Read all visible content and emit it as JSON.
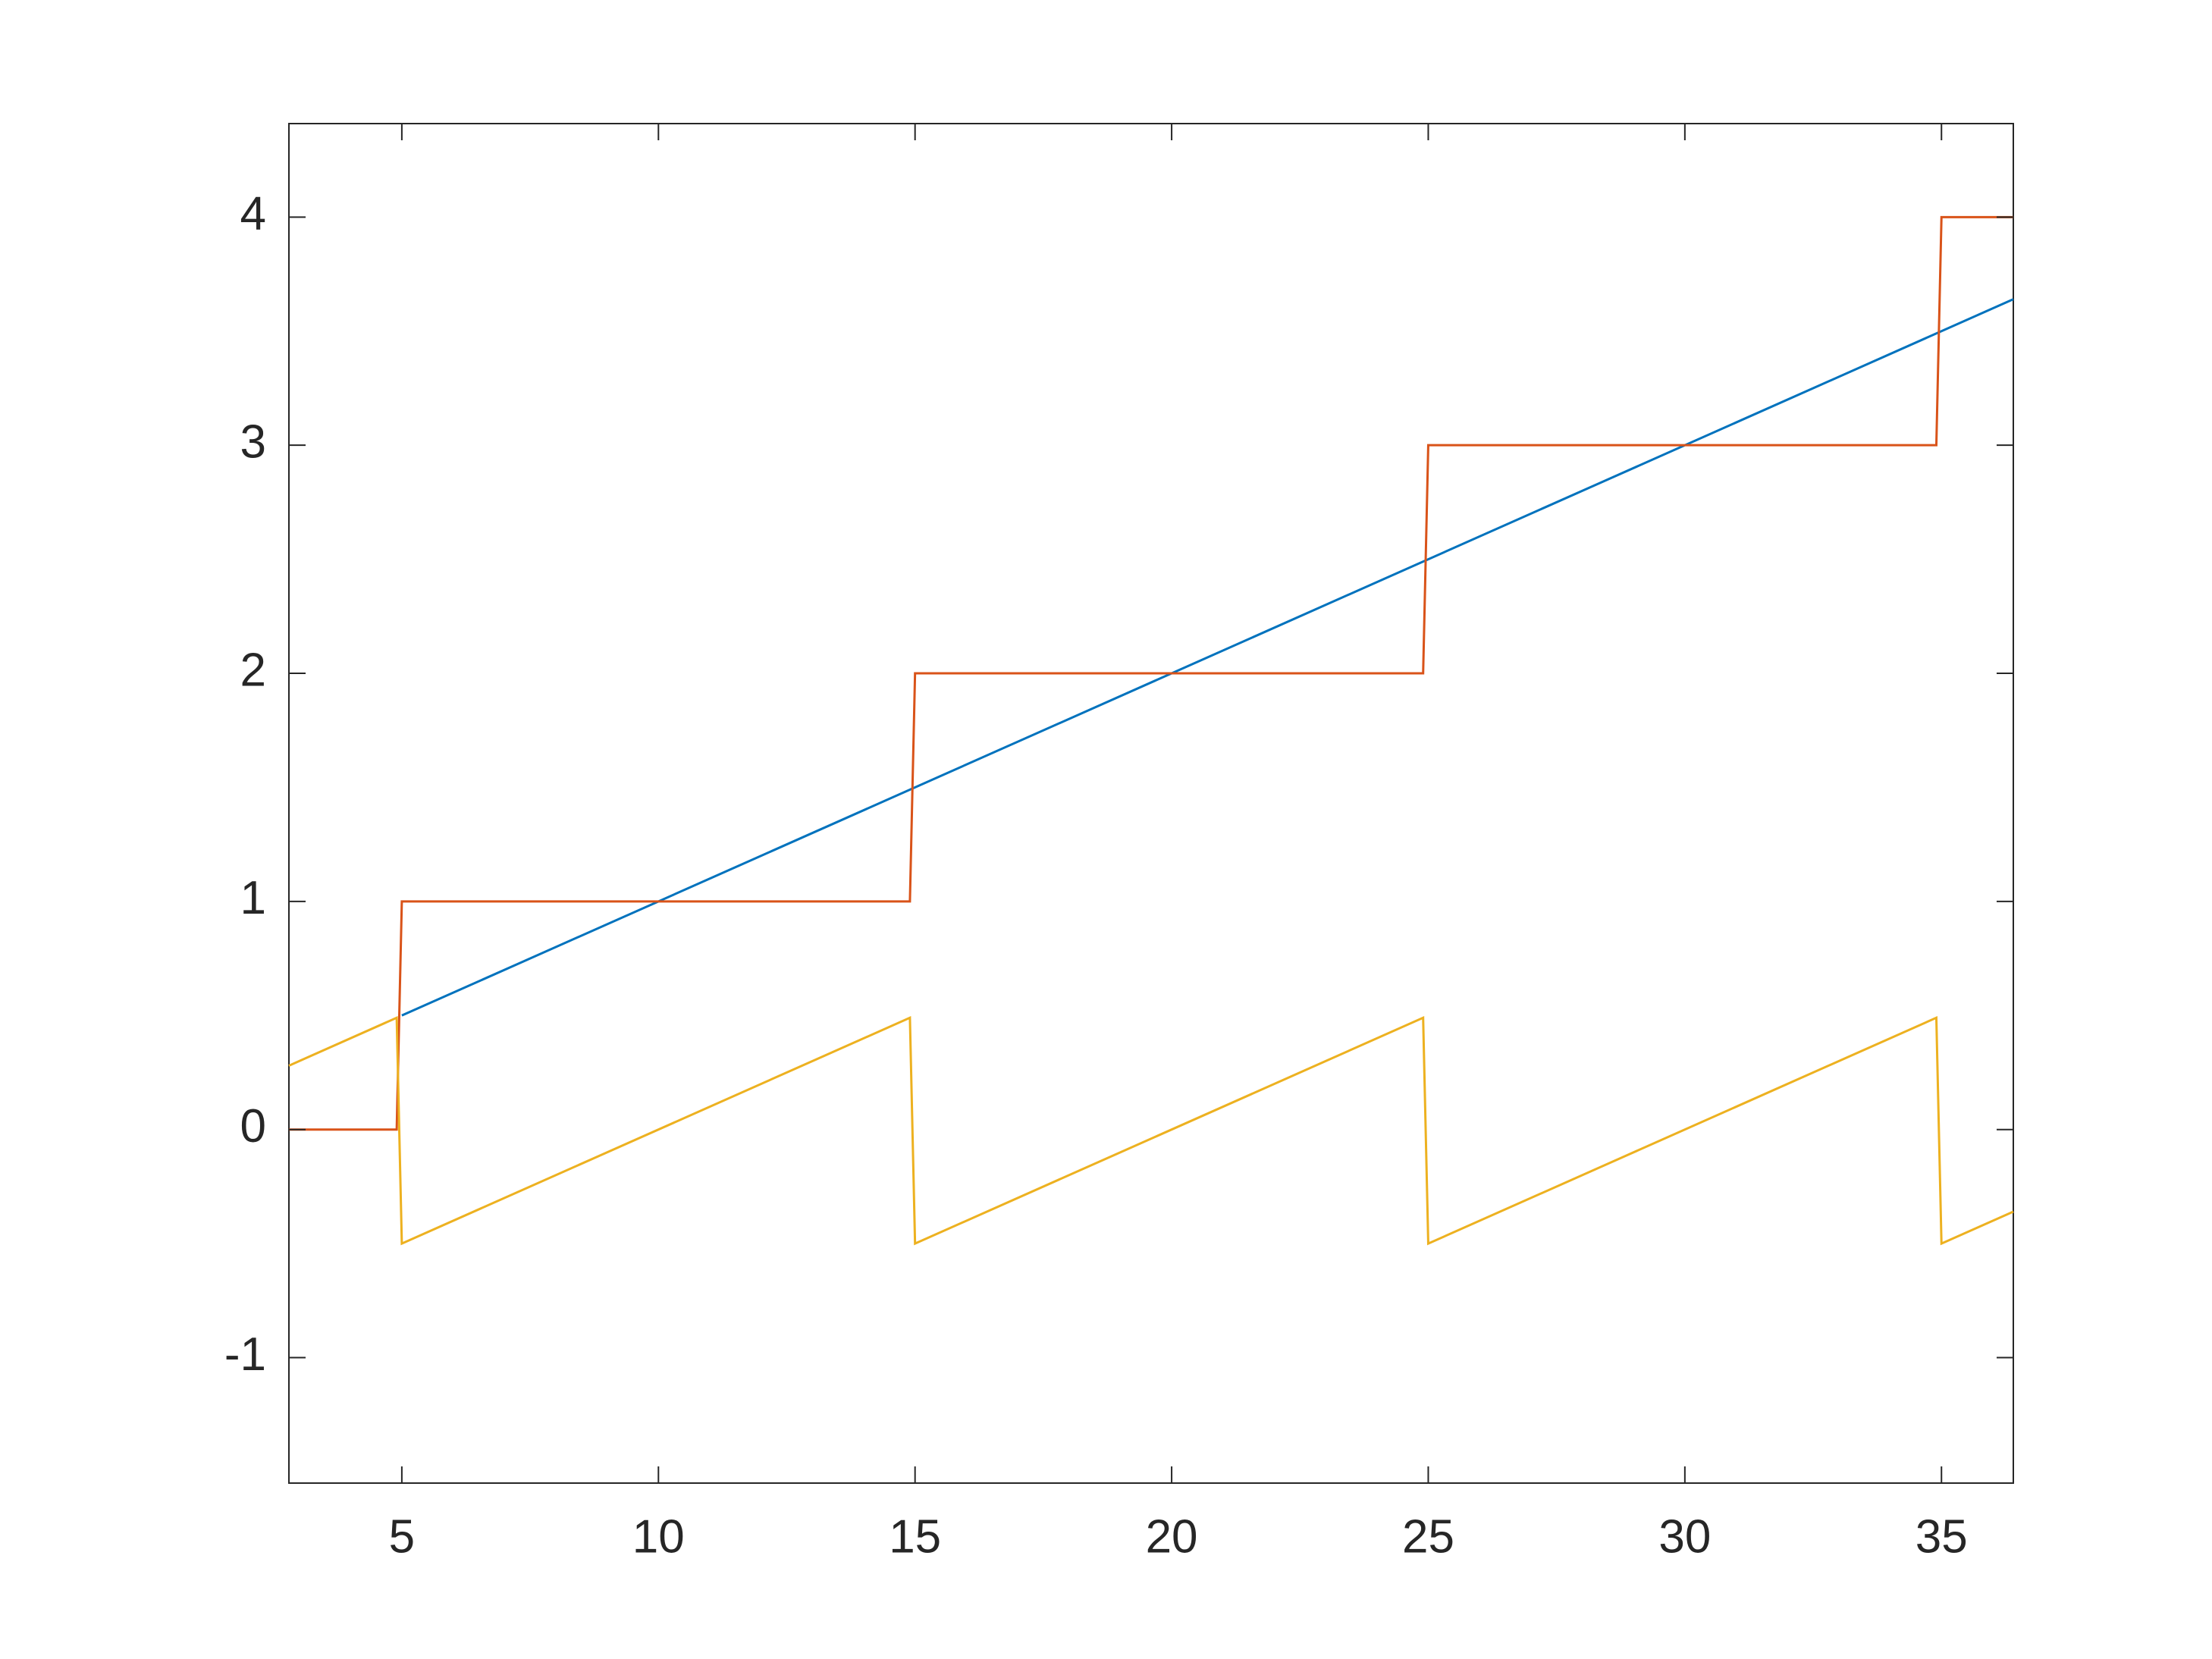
{
  "chart_data": {
    "type": "line",
    "xlim": [
      2.8,
      36.4
    ],
    "ylim": [
      -1.55,
      4.41
    ],
    "xticks": [
      5,
      10,
      15,
      20,
      25,
      30,
      35
    ],
    "yticks": [
      -1,
      0,
      1,
      2,
      3,
      4
    ],
    "series": [
      {
        "color": "#0072BD",
        "x": [
          5,
          36.4
        ],
        "values": [
          0.5,
          3.64
        ]
      },
      {
        "color": "#D95319",
        "x": [
          2.8,
          4.9,
          5.0,
          14.9,
          15.0,
          24.9,
          25.0,
          34.9,
          35.0,
          36.4
        ],
        "values": [
          0,
          0,
          1,
          1,
          2,
          2,
          3,
          3,
          4,
          4
        ]
      },
      {
        "color": "#EDB120",
        "x": [
          2.8,
          4.9,
          5.0,
          14.9,
          15.0,
          24.9,
          25.0,
          34.9,
          35.0,
          36.4
        ],
        "values": [
          0.28,
          0.49,
          -0.5,
          0.49,
          -0.5,
          0.49,
          -0.5,
          0.49,
          -0.5,
          -0.36
        ]
      }
    ]
  }
}
